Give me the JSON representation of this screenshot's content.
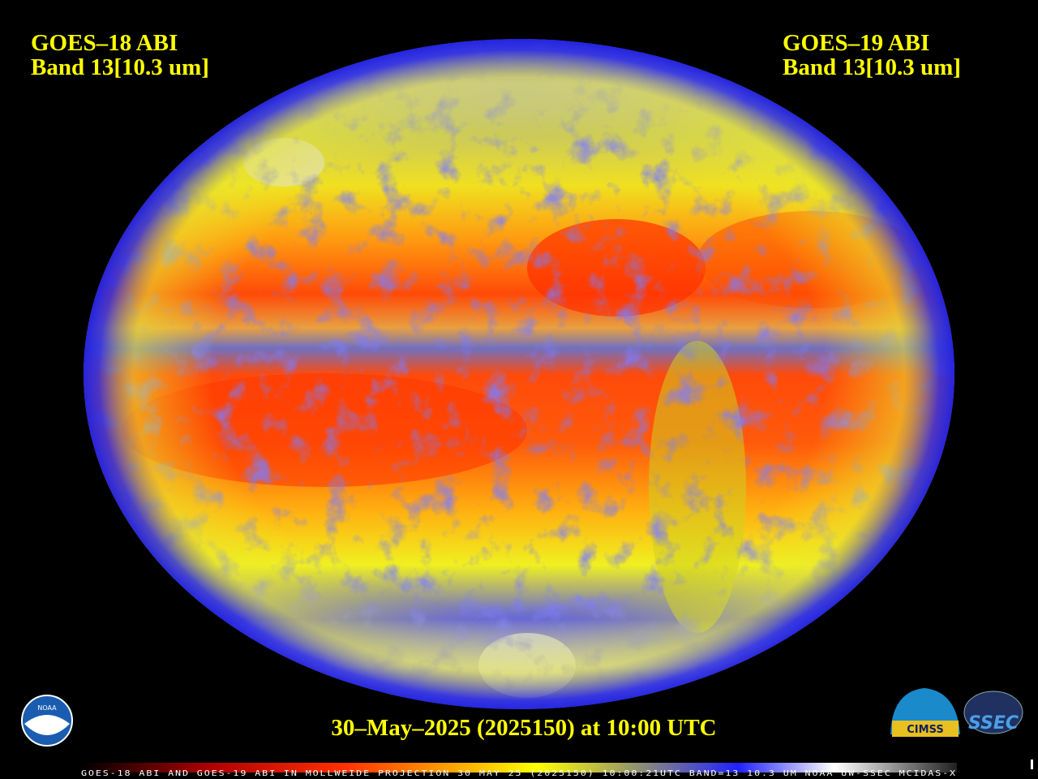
{
  "header": {
    "left": {
      "line1": "GOES–18 ABI",
      "line2": "Band 13[10.3 um]"
    },
    "right": {
      "line1": "GOES–19 ABI",
      "line2": "Band 13[10.3 um]"
    }
  },
  "timestamp": "30–May–2025 (2025150) at 10:00 UTC",
  "footer": "GOES-18 ABI AND GOES-19 ABI IN MOLLWEIDE PROJECTION 30 MAY 25 (2025150) 10:00:21UTC BAND=13 10.3 UM NOAA UW-SSEC MCIDAS-X",
  "logos": {
    "noaa": "NOAA",
    "cimss": "CIMSS",
    "ssec": "SSEC"
  }
}
